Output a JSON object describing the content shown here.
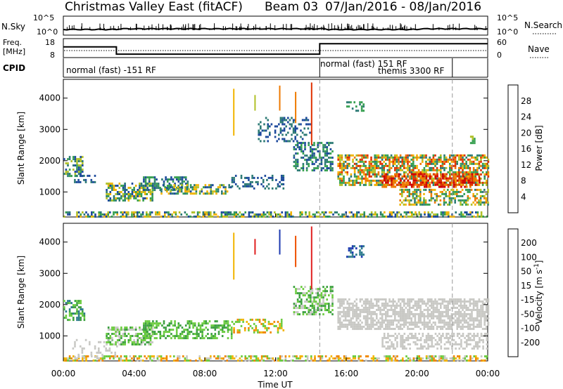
{
  "header": {
    "title": "Christmas Valley East (fitACF)",
    "beam": "Beam 03",
    "date_range": "07/Jan/2016 - 08/Jan/2016"
  },
  "top_panels": {
    "nsky_label": "N.Sky",
    "nsearch_label": "N.Search",
    "count_ticks": [
      "10^5",
      "10^0"
    ],
    "freq_label": "Freq.",
    "freq_unit": "[MHz]",
    "freq_ticks": [
      "18",
      "8"
    ],
    "nave_label": "Nave",
    "nave_ticks": [
      "60",
      "0"
    ],
    "cpid_label": "CPID",
    "cpid_entries": [
      {
        "label": "normal (fast) -151 RF",
        "start_hour": 0
      },
      {
        "label": "normal (fast) 151 RF",
        "start_hour": 14.5
      },
      {
        "label": "themis 3300 RF",
        "start_hour": 22
      }
    ],
    "freq_segments": [
      {
        "from": 0,
        "to": 3,
        "level": 0.55
      },
      {
        "from": 3,
        "to": 14.5,
        "level": 0.15
      },
      {
        "from": 14.5,
        "to": 24,
        "level": 0.72
      }
    ]
  },
  "chart_data": [
    {
      "type": "heatmap",
      "name": "power",
      "ylabel": "Slant Range [km]",
      "yticks": [
        1000,
        2000,
        3000,
        4000
      ],
      "ylim": [
        200,
        4600
      ],
      "xlim": [
        0,
        24
      ],
      "colorbar_label": "Power [dB]",
      "colorbar_ticks": [
        "28",
        "24",
        "20",
        "16",
        "12",
        "8",
        "4"
      ],
      "colorbar_colors": [
        "#0a1fd6",
        "#235aa8",
        "#2c7a74",
        "#36a050",
        "#b0c028",
        "#f2b400",
        "#ee7a00",
        "#e03000",
        "#d00000"
      ],
      "regions": [
        {
          "t0": 0.0,
          "t1": 24.0,
          "r0": 200,
          "r1": 380,
          "colors": [
            "#1d4a9c",
            "#2c7a74",
            "#36a050",
            "#b0c028",
            "#f2b400"
          ],
          "density": 0.55
        },
        {
          "t0": 0.0,
          "t1": 1.1,
          "r0": 1500,
          "r1": 2150,
          "colors": [
            "#1d4a9c",
            "#2c7a74",
            "#36a050",
            "#b0c028"
          ],
          "density": 0.5
        },
        {
          "t0": 0.6,
          "t1": 1.8,
          "r0": 1300,
          "r1": 1550,
          "colors": [
            "#1d4a9c",
            "#2c7a74"
          ],
          "density": 0.45
        },
        {
          "t0": 2.4,
          "t1": 5.0,
          "r0": 700,
          "r1": 1300,
          "colors": [
            "#1d4a9c",
            "#2c7a74",
            "#36a050",
            "#b0c028",
            "#f2b400"
          ],
          "density": 0.6
        },
        {
          "t0": 4.5,
          "t1": 7.0,
          "r0": 1050,
          "r1": 1500,
          "colors": [
            "#1d4a9c",
            "#2c7a74",
            "#36a050"
          ],
          "density": 0.55
        },
        {
          "t0": 5.5,
          "t1": 9.5,
          "r0": 950,
          "r1": 1250,
          "colors": [
            "#1d4a9c",
            "#2c7a74",
            "#36a050",
            "#b0c028",
            "#f2b400"
          ],
          "density": 0.6
        },
        {
          "t0": 9.5,
          "t1": 12.5,
          "r0": 1100,
          "r1": 1550,
          "colors": [
            "#1d4a9c",
            "#2c7a74"
          ],
          "density": 0.35
        },
        {
          "t0": 11.0,
          "t1": 14.0,
          "r0": 2600,
          "r1": 3400,
          "colors": [
            "#1d4a9c",
            "#2c7a74"
          ],
          "density": 0.3
        },
        {
          "t0": 13.0,
          "t1": 15.2,
          "r0": 1700,
          "r1": 2600,
          "colors": [
            "#1d4a9c",
            "#2c7a74",
            "#36a050"
          ],
          "density": 0.5
        },
        {
          "t0": 15.5,
          "t1": 24.0,
          "r0": 1250,
          "r1": 2200,
          "colors": [
            "#2c7a74",
            "#36a050",
            "#b0c028",
            "#f2b400",
            "#ee7a00",
            "#e03000"
          ],
          "density": 0.65
        },
        {
          "t0": 18.0,
          "t1": 23.5,
          "r0": 1150,
          "r1": 1600,
          "colors": [
            "#ee7a00",
            "#e03000",
            "#d00000"
          ],
          "density": 0.6
        },
        {
          "t0": 19.0,
          "t1": 24.0,
          "r0": 600,
          "r1": 1100,
          "colors": [
            "#2c7a74",
            "#36a050",
            "#b0c028",
            "#f2b400",
            "#ee7a00"
          ],
          "density": 0.5
        },
        {
          "t0": 16.0,
          "t1": 17.0,
          "r0": 3600,
          "r1": 3900,
          "colors": [
            "#36a050",
            "#2c7a74"
          ],
          "density": 0.4
        },
        {
          "t0": 23.0,
          "t1": 23.3,
          "r0": 2550,
          "r1": 2800,
          "colors": [
            "#36a050",
            "#b0c028"
          ],
          "density": 0.6
        }
      ],
      "streaks": [
        {
          "t": 14.0,
          "r0": 2500,
          "r1": 4500,
          "color": "#e03000"
        },
        {
          "t": 13.1,
          "r0": 3200,
          "r1": 4200,
          "color": "#ee7a00"
        },
        {
          "t": 9.6,
          "r0": 2800,
          "r1": 4300,
          "color": "#f2b400"
        },
        {
          "t": 12.2,
          "r0": 3600,
          "r1": 4400,
          "color": "#ee7a00"
        },
        {
          "t": 10.8,
          "r0": 3600,
          "r1": 4100,
          "color": "#b0c028"
        }
      ],
      "dashed_times": [
        14.5,
        22.0
      ]
    },
    {
      "type": "heatmap",
      "name": "velocity",
      "ylabel": "Slant Range [km]",
      "xlabel": "Time UT",
      "yticks": [
        1000,
        2000,
        3000,
        4000
      ],
      "ylim": [
        200,
        4600
      ],
      "xlim": [
        0,
        24
      ],
      "xticks": [
        "00:00",
        "04:00",
        "08:00",
        "12:00",
        "16:00",
        "20:00",
        "00:00"
      ],
      "colorbar_label": "Velocity [m s^-1]",
      "colorbar_ticks": [
        "200",
        "100",
        "50",
        "15",
        "-15",
        "-50",
        "-100",
        "-200"
      ],
      "colorbar_colors": [
        "#e02020",
        "#ee5000",
        "#f08800",
        "#f2b400",
        "#c8c8c4",
        "#6ccc40",
        "#3ca040",
        "#2c7a8c",
        "#1d3ab0"
      ],
      "regions": [
        {
          "t0": 0.0,
          "t1": 24.0,
          "r0": 200,
          "r1": 380,
          "colors": [
            "#f2b400",
            "#f08800",
            "#c8c8c4",
            "#6ccc40"
          ],
          "density": 0.55
        },
        {
          "t0": 0.0,
          "t1": 1.2,
          "r0": 1500,
          "r1": 2150,
          "colors": [
            "#3ca040",
            "#2c7a8c",
            "#6ccc40"
          ],
          "density": 0.5
        },
        {
          "t0": 2.4,
          "t1": 5.0,
          "r0": 700,
          "r1": 1300,
          "colors": [
            "#6ccc40",
            "#3ca040",
            "#c8c8c4"
          ],
          "density": 0.6
        },
        {
          "t0": 4.5,
          "t1": 9.5,
          "r0": 950,
          "r1": 1500,
          "colors": [
            "#6ccc40",
            "#3ca040"
          ],
          "density": 0.55
        },
        {
          "t0": 9.5,
          "t1": 12.5,
          "r0": 1100,
          "r1": 1550,
          "colors": [
            "#f08800",
            "#f2b400",
            "#6ccc40"
          ],
          "density": 0.35
        },
        {
          "t0": 13.0,
          "t1": 15.2,
          "r0": 1700,
          "r1": 2600,
          "colors": [
            "#6ccc40",
            "#3ca040",
            "#c8c8c4"
          ],
          "density": 0.5
        },
        {
          "t0": 15.5,
          "t1": 24.0,
          "r0": 1250,
          "r1": 2200,
          "colors": [
            "#c8c8c4"
          ],
          "density": 0.7
        },
        {
          "t0": 18.0,
          "t1": 24.0,
          "r0": 600,
          "r1": 1100,
          "colors": [
            "#c8c8c4"
          ],
          "density": 0.55
        },
        {
          "t0": 16.0,
          "t1": 17.0,
          "r0": 3500,
          "r1": 3900,
          "colors": [
            "#1d3ab0",
            "#2c7a8c"
          ],
          "density": 0.4
        },
        {
          "t0": 0.5,
          "t1": 3.0,
          "r0": 350,
          "r1": 900,
          "colors": [
            "#c8c8c4"
          ],
          "density": 0.2
        }
      ],
      "streaks": [
        {
          "t": 14.0,
          "r0": 2500,
          "r1": 4500,
          "color": "#e02020"
        },
        {
          "t": 13.1,
          "r0": 3200,
          "r1": 4200,
          "color": "#ee5000"
        },
        {
          "t": 9.6,
          "r0": 2800,
          "r1": 4300,
          "color": "#f2b400"
        },
        {
          "t": 12.2,
          "r0": 3600,
          "r1": 4400,
          "color": "#1d3ab0"
        },
        {
          "t": 10.8,
          "r0": 3600,
          "r1": 4100,
          "color": "#e02020"
        }
      ],
      "dashed_times": [
        14.5,
        22.0
      ]
    }
  ]
}
